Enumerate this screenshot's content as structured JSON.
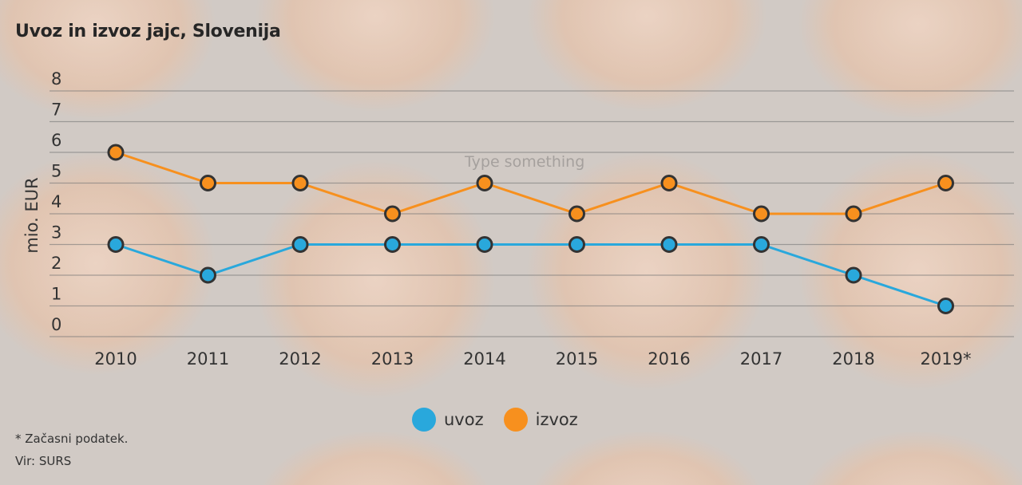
{
  "title": "Uvoz in izvoz jajc, Slovenija",
  "placeholder_text": "Type something",
  "footnote": "* Začasni podatek.",
  "source": "Vir: SURS",
  "colors": {
    "uvoz": "#29a8dc",
    "izvoz": "#f7901e",
    "marker_stroke": "#333333"
  },
  "chart_data": {
    "type": "line",
    "title": "Uvoz in izvoz jajc, Slovenija",
    "xlabel": "",
    "ylabel": "mio. EUR",
    "categories": [
      "2010",
      "2011",
      "2012",
      "2013",
      "2014",
      "2015",
      "2016",
      "2017",
      "2018",
      "2019*"
    ],
    "yticks": [
      "0",
      "1",
      "2",
      "3",
      "4",
      "5",
      "6",
      "7",
      "8"
    ],
    "ylim": [
      0,
      8
    ],
    "grid": true,
    "legend_position": "bottom-center",
    "series": [
      {
        "name": "uvoz",
        "values": [
          3,
          2,
          3,
          3,
          3,
          3,
          3,
          3,
          2,
          1
        ]
      },
      {
        "name": "izvoz",
        "values": [
          6,
          5,
          5,
          4,
          5,
          4,
          5,
          4,
          4,
          5
        ]
      }
    ]
  }
}
